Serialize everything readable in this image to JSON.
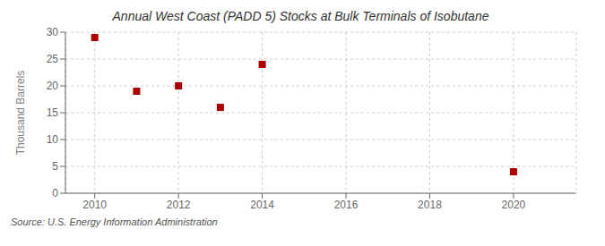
{
  "chart_data": {
    "type": "scatter",
    "title": "Annual West Coast (PADD 5) Stocks at Bulk Terminals of Isobutane",
    "ylabel": "Thousand Barrels",
    "source": "Source: U.S. Energy Information Administration",
    "x": [
      2010,
      2011,
      2012,
      2013,
      2014,
      2020
    ],
    "values": [
      29,
      19,
      20,
      16,
      24,
      4
    ],
    "color": "#aa0000",
    "marker": "square",
    "xlim": [
      2009.3,
      2021.5
    ],
    "xticks": [
      2010,
      2012,
      2014,
      2016,
      2018,
      2020
    ],
    "ylim": [
      0,
      30
    ],
    "yticks": [
      0,
      5,
      10,
      15,
      20,
      25,
      30
    ],
    "grid": true
  }
}
